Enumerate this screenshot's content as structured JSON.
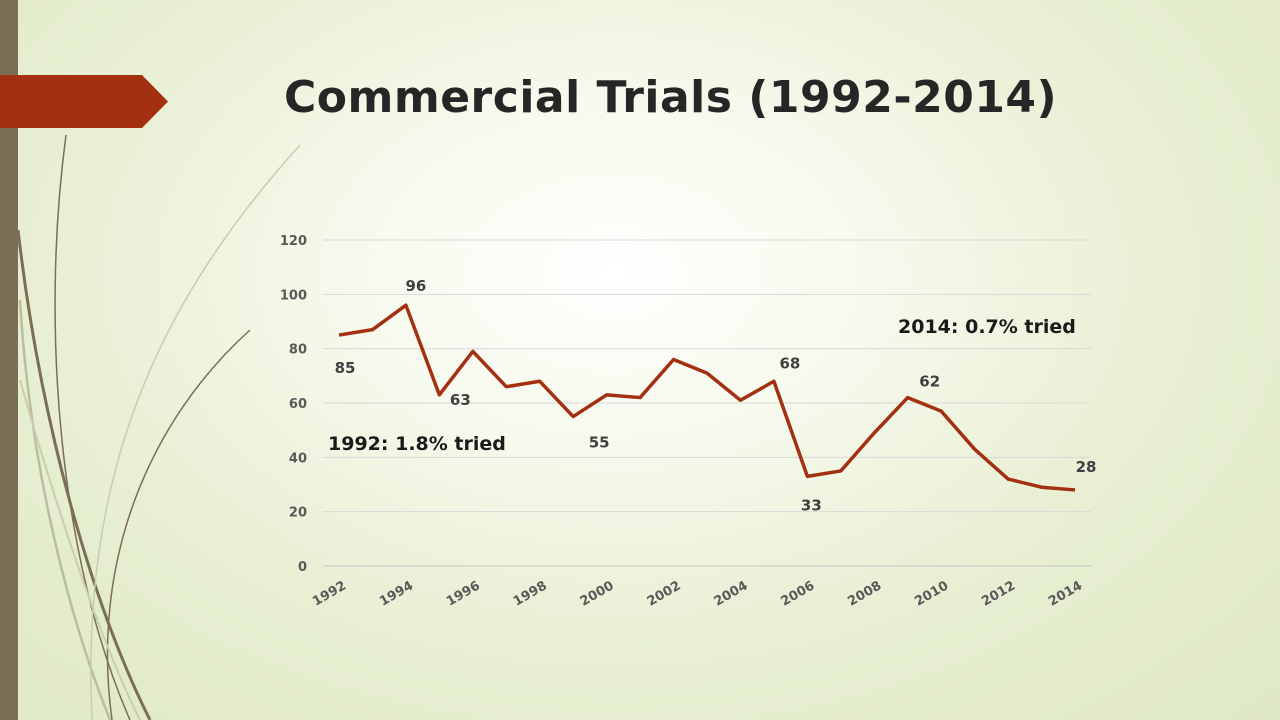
{
  "slide": {
    "title": "Commercial Trials (1992-2014)"
  },
  "colors": {
    "accent": "#a33010",
    "side_bar": "#7a6e55",
    "line": "#a33010"
  },
  "chart_data": {
    "type": "line",
    "title": "",
    "xlabel": "",
    "ylabel": "",
    "ylim": [
      0,
      120
    ],
    "y_ticks": [
      0,
      20,
      40,
      60,
      80,
      100,
      120
    ],
    "x_tick_labels": [
      "1992",
      "1994",
      "1996",
      "1998",
      "2000",
      "2002",
      "2004",
      "2006",
      "2008",
      "2010",
      "2012",
      "2014"
    ],
    "x": [
      1992,
      1993,
      1994,
      1995,
      1996,
      1997,
      1998,
      1999,
      2000,
      2001,
      2002,
      2003,
      2004,
      2005,
      2006,
      2007,
      2008,
      2009,
      2010,
      2011,
      2012,
      2013,
      2014
    ],
    "series": [
      {
        "values": [
          85,
          87,
          96,
          63,
          79,
          66,
          68,
          55,
          63,
          62,
          76,
          71,
          61,
          68,
          33,
          35,
          49,
          62,
          57,
          43,
          32,
          29,
          28
        ]
      }
    ],
    "data_labels": [
      {
        "x": 1992,
        "text": "85"
      },
      {
        "x": 1994,
        "text": "96"
      },
      {
        "x": 1995,
        "text": "63"
      },
      {
        "x": 1999,
        "text": "55"
      },
      {
        "x": 2005,
        "text": "68"
      },
      {
        "x": 2006,
        "text": "33"
      },
      {
        "x": 2009,
        "text": "62"
      },
      {
        "x": 2014,
        "text": "28"
      }
    ],
    "grid": true,
    "legend": "none",
    "annotations": {
      "start": "1992: 1.8% tried",
      "end": "2014: 0.7% tried"
    }
  }
}
